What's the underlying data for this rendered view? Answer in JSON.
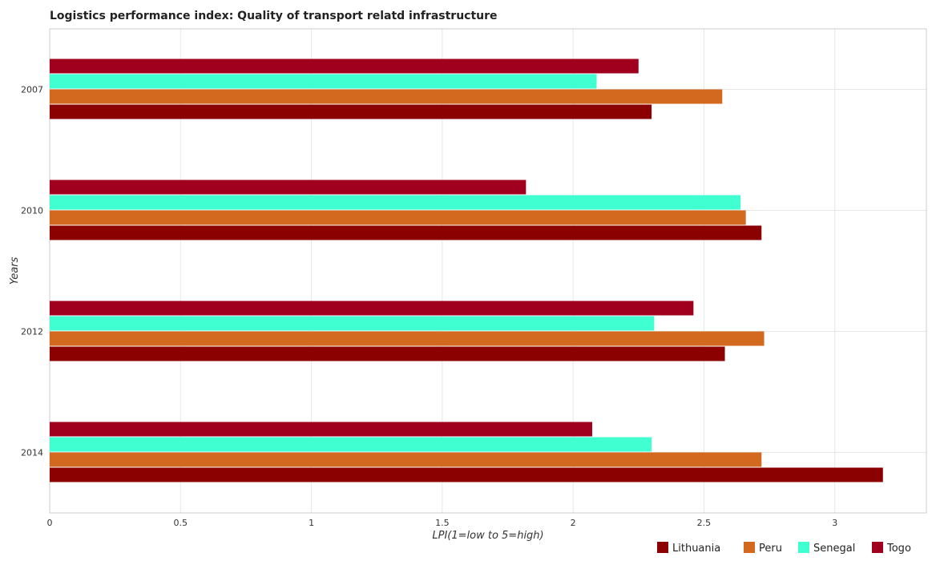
{
  "chart_data": {
    "type": "bar",
    "orientation": "horizontal",
    "title": "Logistics performance index: Quality of transport relatd infrastructure",
    "xlabel": "LPI(1=low to 5=high)",
    "ylabel": "Years",
    "categories": [
      "2007",
      "2010",
      "2012",
      "2014"
    ],
    "xlim": [
      0,
      3.35
    ],
    "xticks": [
      0,
      0.5,
      1,
      1.5,
      2,
      2.5,
      3
    ],
    "xtick_labels": [
      "0",
      "0.5",
      "1",
      "1.5",
      "2",
      "2.5",
      "3"
    ],
    "grid": true,
    "legend_position": "bottom-right",
    "series": [
      {
        "name": "Lithuania",
        "color": "#8b0000",
        "values": [
          2.3,
          2.72,
          2.58,
          3.184
        ]
      },
      {
        "name": "Peru",
        "color": "#d2691e",
        "values": [
          2.57,
          2.66,
          2.73,
          2.72
        ]
      },
      {
        "name": "Senegal",
        "color": "#40ffd0",
        "values": [
          2.09,
          2.64,
          2.31,
          2.3
        ]
      },
      {
        "name": "Togo",
        "color": "#a0001e",
        "values": [
          2.25,
          1.82,
          2.46,
          2.073
        ]
      }
    ]
  }
}
